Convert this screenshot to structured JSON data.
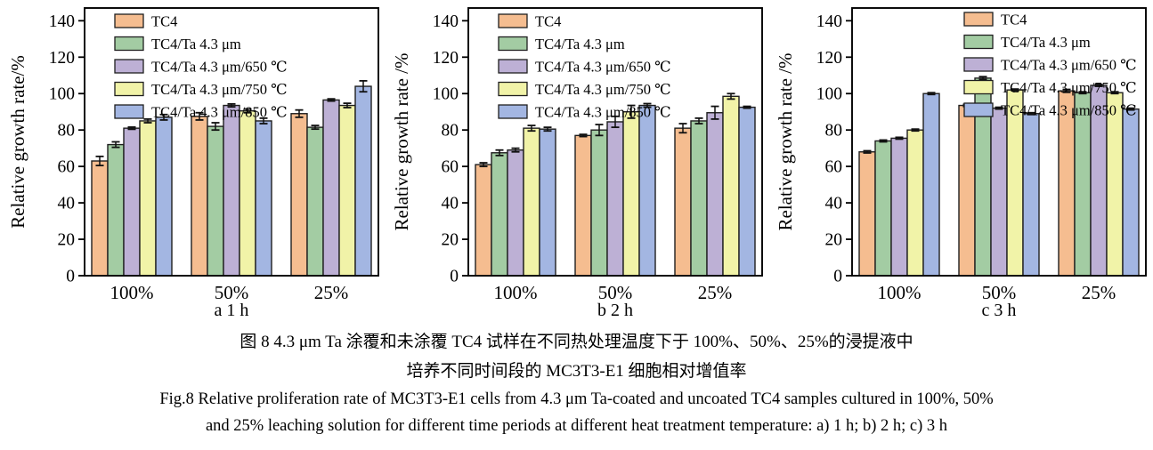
{
  "figure": {
    "caption_zh_line1": "图 8  4.3 μm Ta 涂覆和未涂覆 TC4 试样在不同热处理温度下于 100%、50%、25%的浸提液中",
    "caption_zh_line2": "培养不同时间段的 MC3T3-E1 细胞相对增值率",
    "caption_en_line1": "Fig.8 Relative proliferation rate of MC3T3-E1 cells from 4.3 μm Ta-coated and uncoated TC4 samples cultured in 100%, 50%",
    "caption_en_line2": "and 25% leaching solution for different time periods at different heat treatment temperature: a) 1 h; b) 2 h; c) 3 h"
  },
  "colors": {
    "tc4": "#F5BD90",
    "ta": "#A3CCA3",
    "ta650": "#BDB0D5",
    "ta750": "#F1F3A8",
    "ta850": "#A3B6E2",
    "bar_border": "#1f1f1f",
    "axis": "#000000",
    "error_bar": "#111111"
  },
  "chart_data": [
    {
      "type": "bar",
      "panel": "a",
      "sublabel": "a  1 h",
      "ylabel": "Relative growth rate/%",
      "categories": [
        "100%",
        "50%",
        "25%"
      ],
      "yticks": [
        0,
        20,
        40,
        60,
        80,
        100,
        120,
        140
      ],
      "ylim": [
        0,
        147
      ],
      "grid": false,
      "legend_position": "top-left",
      "series": [
        {
          "name": "TC4",
          "color": "#F5BD90",
          "values": [
            63,
            87.5,
            89
          ],
          "errors": [
            2.5,
            2,
            2
          ]
        },
        {
          "name": "TC4/Ta 4.3 μm",
          "color": "#A3CCA3",
          "values": [
            72,
            82,
            81.5
          ],
          "errors": [
            1.5,
            2,
            1
          ]
        },
        {
          "name": "TC4/Ta 4.3 μm/650 ℃",
          "color": "#BDB0D5",
          "values": [
            81,
            93.5,
            96.5
          ],
          "errors": [
            0.6,
            0.8,
            0.6
          ]
        },
        {
          "name": "TC4/Ta 4.3 μm/750 ℃",
          "color": "#F1F3A8",
          "values": [
            85,
            90.5,
            93.5
          ],
          "errors": [
            1,
            1,
            1.2
          ]
        },
        {
          "name": "TC4/Ta 4.3 μm/850 ℃",
          "color": "#A3B6E2",
          "values": [
            87,
            85,
            104
          ],
          "errors": [
            1.5,
            1.5,
            3
          ]
        }
      ]
    },
    {
      "type": "bar",
      "panel": "b",
      "sublabel": "b  2 h",
      "ylabel": "Relative growth rate /%",
      "categories": [
        "100%",
        "50%",
        "25%"
      ],
      "yticks": [
        0,
        20,
        40,
        60,
        80,
        100,
        120,
        140
      ],
      "ylim": [
        0,
        147
      ],
      "grid": false,
      "legend_position": "top-left",
      "series": [
        {
          "name": "TC4",
          "color": "#F5BD90",
          "values": [
            61,
            77,
            81
          ],
          "errors": [
            1,
            0.6,
            2.5
          ]
        },
        {
          "name": "TC4/Ta 4.3 μm",
          "color": "#A3CCA3",
          "values": [
            67.5,
            80,
            85
          ],
          "errors": [
            1.5,
            3,
            1.5
          ]
        },
        {
          "name": "TC4/Ta 4.3 μm/650 ℃",
          "color": "#BDB0D5",
          "values": [
            69,
            84.5,
            89.5
          ],
          "errors": [
            1,
            3,
            3.5
          ]
        },
        {
          "name": "TC4/Ta 4.3 μm/750 ℃",
          "color": "#F1F3A8",
          "values": [
            81,
            90,
            98.5
          ],
          "errors": [
            1.5,
            3.5,
            1.5
          ]
        },
        {
          "name": "TC4/Ta 4.3 μm/850 ℃",
          "color": "#A3B6E2",
          "values": [
            80.5,
            93.5,
            92.5
          ],
          "errors": [
            1,
            1,
            0.5
          ]
        }
      ]
    },
    {
      "type": "bar",
      "panel": "c",
      "sublabel": "c  3 h",
      "ylabel": "Relative growth rate /%",
      "categories": [
        "100%",
        "50%",
        "25%"
      ],
      "yticks": [
        0,
        20,
        40,
        60,
        80,
        100,
        120,
        140
      ],
      "ylim": [
        0,
        147
      ],
      "grid": false,
      "legend_position": "top-right",
      "series": [
        {
          "name": "TC4",
          "color": "#F5BD90",
          "values": [
            68,
            93.5,
            101.5
          ],
          "errors": [
            0.6,
            0.6,
            0.8
          ]
        },
        {
          "name": "TC4/Ta 4.3 μm",
          "color": "#A3CCA3",
          "values": [
            74,
            108.5,
            100.5
          ],
          "errors": [
            0.5,
            0.8,
            0.5
          ]
        },
        {
          "name": "TC4/Ta 4.3 μm/650 ℃",
          "color": "#BDB0D5",
          "values": [
            75.5,
            92,
            104.5
          ],
          "errors": [
            0.5,
            0.5,
            0.5
          ]
        },
        {
          "name": "TC4/Ta 4.3 μm/750 ℃",
          "color": "#F1F3A8",
          "values": [
            80,
            102,
            100.5
          ],
          "errors": [
            0.5,
            0.5,
            0.5
          ]
        },
        {
          "name": "TC4/Ta 4.3 μm/850 ℃",
          "color": "#A3B6E2",
          "values": [
            100,
            89,
            91.5
          ],
          "errors": [
            0.5,
            0.5,
            0.5
          ]
        }
      ]
    }
  ]
}
